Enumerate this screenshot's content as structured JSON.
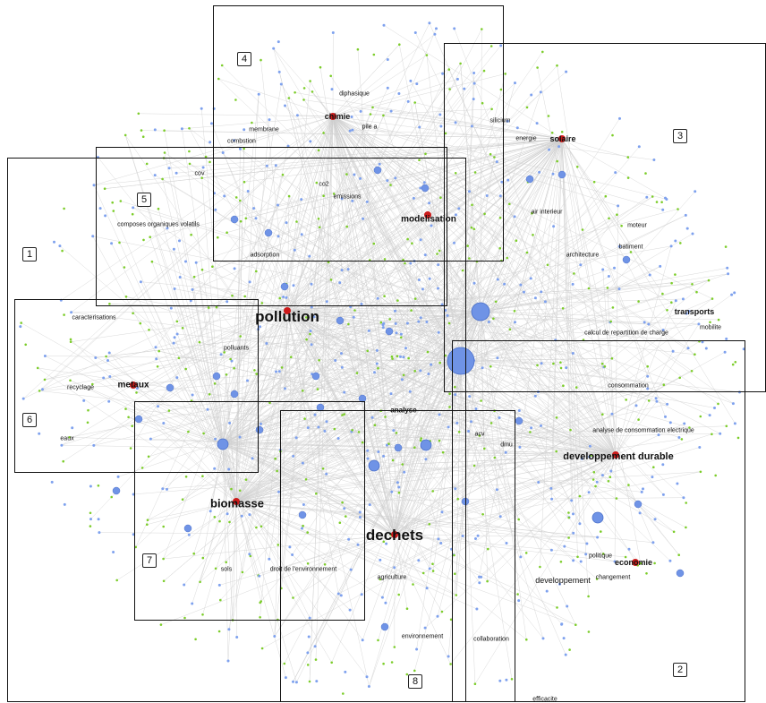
{
  "diagram": {
    "regions": [
      {
        "id": "1",
        "label": "1"
      },
      {
        "id": "2",
        "label": "2"
      },
      {
        "id": "3",
        "label": "3"
      },
      {
        "id": "4",
        "label": "4"
      },
      {
        "id": "5",
        "label": "5"
      },
      {
        "id": "6",
        "label": "6"
      },
      {
        "id": "7",
        "label": "7"
      },
      {
        "id": "8",
        "label": "8"
      }
    ],
    "terms": {
      "diphasique": "diphasique",
      "chimie": "chimie",
      "membrane": "membrane",
      "pile_a": "pile a",
      "combustion": "combstion",
      "silicium": "silicium",
      "energie": "energie",
      "solaire": "solaire",
      "cov": "cov",
      "co2": "co2",
      "emissions": "emissions",
      "composes": "composes organiques volatils",
      "modelisation": "modelisation",
      "air_interieur": "air interieur",
      "moteur": "moteur",
      "batiment": "batiment",
      "architecture": "architecture",
      "adsorption": "adsorption",
      "caracterisations": "caracterisations",
      "pollution": "pollution",
      "polluants": "polluants",
      "transports": "transports",
      "mobilite": "mobilite",
      "calcul": "calcul de repartition de charge",
      "recyclage": "recyclage",
      "metaux": "metaux",
      "consommation": "consommation",
      "eaux": "eaux",
      "analyse": "analyse",
      "acv": "acv",
      "dmu": "dmu",
      "analyse_conso": "analyse de consommation electrique",
      "dev_durable": "developpement durable",
      "biomasse": "biomasse",
      "dechets": "dechets",
      "politique": "politique",
      "economie": "economie",
      "changement": "changement",
      "developpement": "developpement",
      "sols": "sols",
      "droit": "droit de l'environnement",
      "agriculture": "agriculture",
      "environnement": "environnement",
      "collaboration": "collaboration",
      "efficacite": "efficacite"
    },
    "colors": {
      "node_blue": "#6f93e6",
      "node_blue_small": "#7ea1ee",
      "node_green": "#7ccd2a",
      "node_red": "#cc1a1a",
      "edge": "#cfcfcf",
      "frame": "#111111"
    }
  }
}
